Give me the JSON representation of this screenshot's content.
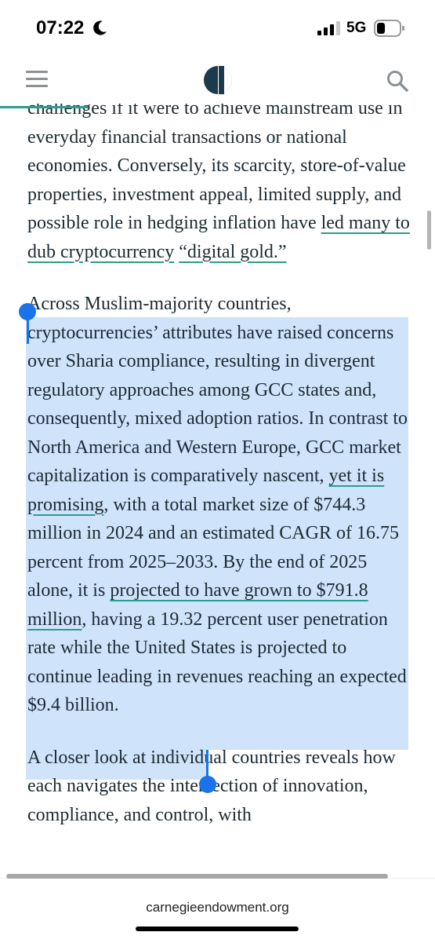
{
  "status_bar": {
    "time": "07:22",
    "network": "5G"
  },
  "browser": {
    "url": "carnegieendowment.org"
  },
  "article": {
    "paragraph_1": {
      "text_1": "challenges if it were to achieve mainstream use in everyday financial transactions or national economies. Conversely, its scarcity, store-of-value properties, investment appeal, limited supply, and possible role in hedging inflation have ",
      "link_1": "led many to dub cryptocurrency",
      "text_2": " ",
      "link_2": "“digital gold.”"
    },
    "paragraph_2": {
      "text_1": "Across Muslim-majority countries, cryptocurrencies’ attributes have raised concerns over Sharia compliance, resulting in divergent regulatory approaches among GCC states and, consequently, mixed adoption ratios. In contrast to North America and Western Europe, GCC market capitalization is comparatively nascent, ",
      "link_1": "yet it is promising",
      "text_2": ", with a total market size of $744.3 million in 2024 and an estimated CAGR of 16.75 percent from 2025–2033. By the end of 2025 alone, it is ",
      "link_2": "projected to have grown to $791.8 million",
      "text_3": ", having a 19.32 percent user penetration rate while the United States is projected to continue leading in revenues reaching an expected $9.4 billion."
    },
    "paragraph_3": {
      "text_1": "A closer look at individual countries reveals how each navigates the intersection of innovation, compliance, and control, with"
    }
  },
  "colors": {
    "accent": "#2a9d8f",
    "selection": "#cfe3fb",
    "handle": "#1a73e8",
    "logo": "#1b3a4b"
  },
  "icons": [
    "moon-icon",
    "signal-icon",
    "battery-icon",
    "menu-icon",
    "carnegie-logo",
    "search-icon"
  ]
}
